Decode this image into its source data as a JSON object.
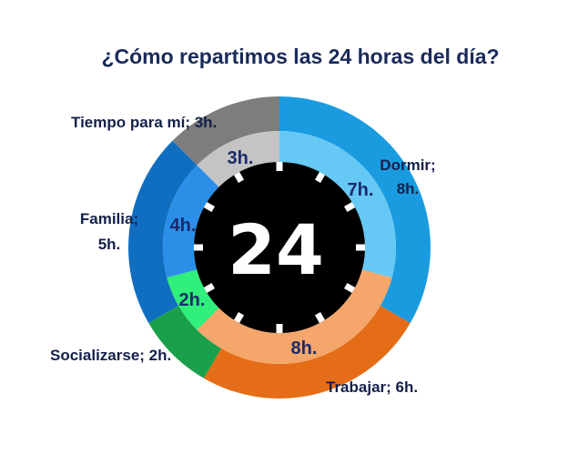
{
  "chart_data": {
    "type": "pie",
    "title": "¿Cómo repartimos las 24 horas del día?",
    "center_label": "24",
    "rings": [
      {
        "ring": "outer",
        "slices": [
          {
            "category": "Dormir",
            "value": 8,
            "label_lines": [
              "Dormir;",
              "8h."
            ],
            "color": "#1a9be0"
          },
          {
            "category": "Trabajar",
            "value": 6,
            "label_lines": [
              "Trabajar; 6h."
            ],
            "color": "#e56d17"
          },
          {
            "category": "Socializarse",
            "value": 2,
            "label_lines": [
              "Socializarse; 2h."
            ],
            "color": "#1aa04a"
          },
          {
            "category": "Familia",
            "value": 5,
            "label_lines": [
              "Familia;",
              "5h."
            ],
            "color": "#0f6ec0"
          },
          {
            "category": "Tiempo para mí",
            "value": 3,
            "label_lines": [
              "Tiempo para mí; 3h."
            ],
            "color": "#7d7d7d"
          }
        ]
      },
      {
        "ring": "inner",
        "slices": [
          {
            "category": "Dormir",
            "value": 7,
            "label": "7h.",
            "color": "#66c8f4"
          },
          {
            "category": "Trabajar",
            "value": 8,
            "label": "8h.",
            "color": "#f5a66a"
          },
          {
            "category": "Socializarse",
            "value": 2,
            "label": "2h.",
            "color": "#2ef07a"
          },
          {
            "category": "Familia",
            "value": 4,
            "label": "4h.",
            "color": "#2b8fe8"
          },
          {
            "category": "Tiempo para mí",
            "value": 3,
            "label": "3h.",
            "color": "#c4c4c4"
          }
        ]
      }
    ],
    "total_hours": 24
  }
}
